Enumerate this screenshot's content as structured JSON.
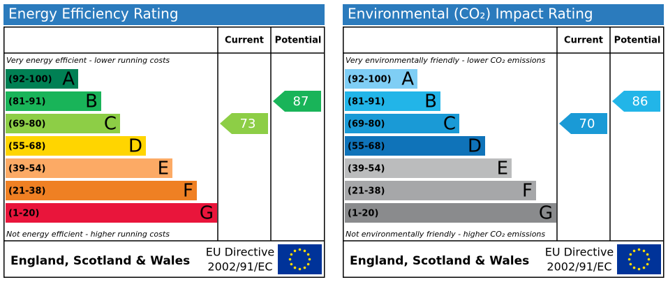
{
  "panels": [
    {
      "title": "Energy Efficiency Rating",
      "headers": {
        "current": "Current",
        "potential": "Potential"
      },
      "top_note": "Very energy efficient - lower running costs",
      "bottom_note": "Not energy efficient - higher running costs",
      "bands": [
        {
          "range": "(92-100)",
          "letter": "A",
          "color": "#008054"
        },
        {
          "range": "(81-91)",
          "letter": "B",
          "color": "#19b459"
        },
        {
          "range": "(69-80)",
          "letter": "C",
          "color": "#8dce46"
        },
        {
          "range": "(55-68)",
          "letter": "D",
          "color": "#ffd500"
        },
        {
          "range": "(39-54)",
          "letter": "E",
          "color": "#fcaa65"
        },
        {
          "range": "(21-38)",
          "letter": "F",
          "color": "#ef8023"
        },
        {
          "range": "(1-20)",
          "letter": "G",
          "color": "#e9153b"
        }
      ],
      "current": 73,
      "potential": 87,
      "footer": {
        "region": "England, Scotland & Wales",
        "directive": "EU Directive",
        "code": "2002/91/EC"
      }
    },
    {
      "title": "Environmental (CO₂) Impact Rating",
      "headers": {
        "current": "Current",
        "potential": "Potential"
      },
      "top_note": "Very environmentally friendly - lower CO₂ emissions",
      "bottom_note": "Not environmentally friendly - higher CO₂ emissions",
      "bands": [
        {
          "range": "(92-100)",
          "letter": "A",
          "color": "#7fcef5"
        },
        {
          "range": "(81-91)",
          "letter": "B",
          "color": "#22b5e8"
        },
        {
          "range": "(69-80)",
          "letter": "C",
          "color": "#1a9ad6"
        },
        {
          "range": "(55-68)",
          "letter": "D",
          "color": "#0f73b9"
        },
        {
          "range": "(39-54)",
          "letter": "E",
          "color": "#bbbcbd"
        },
        {
          "range": "(21-38)",
          "letter": "F",
          "color": "#a6a7a9"
        },
        {
          "range": "(1-20)",
          "letter": "G",
          "color": "#8a8b8d"
        }
      ],
      "current": 70,
      "potential": 86,
      "footer": {
        "region": "England, Scotland & Wales",
        "directive": "EU Directive",
        "code": "2002/91/EC"
      }
    }
  ]
}
